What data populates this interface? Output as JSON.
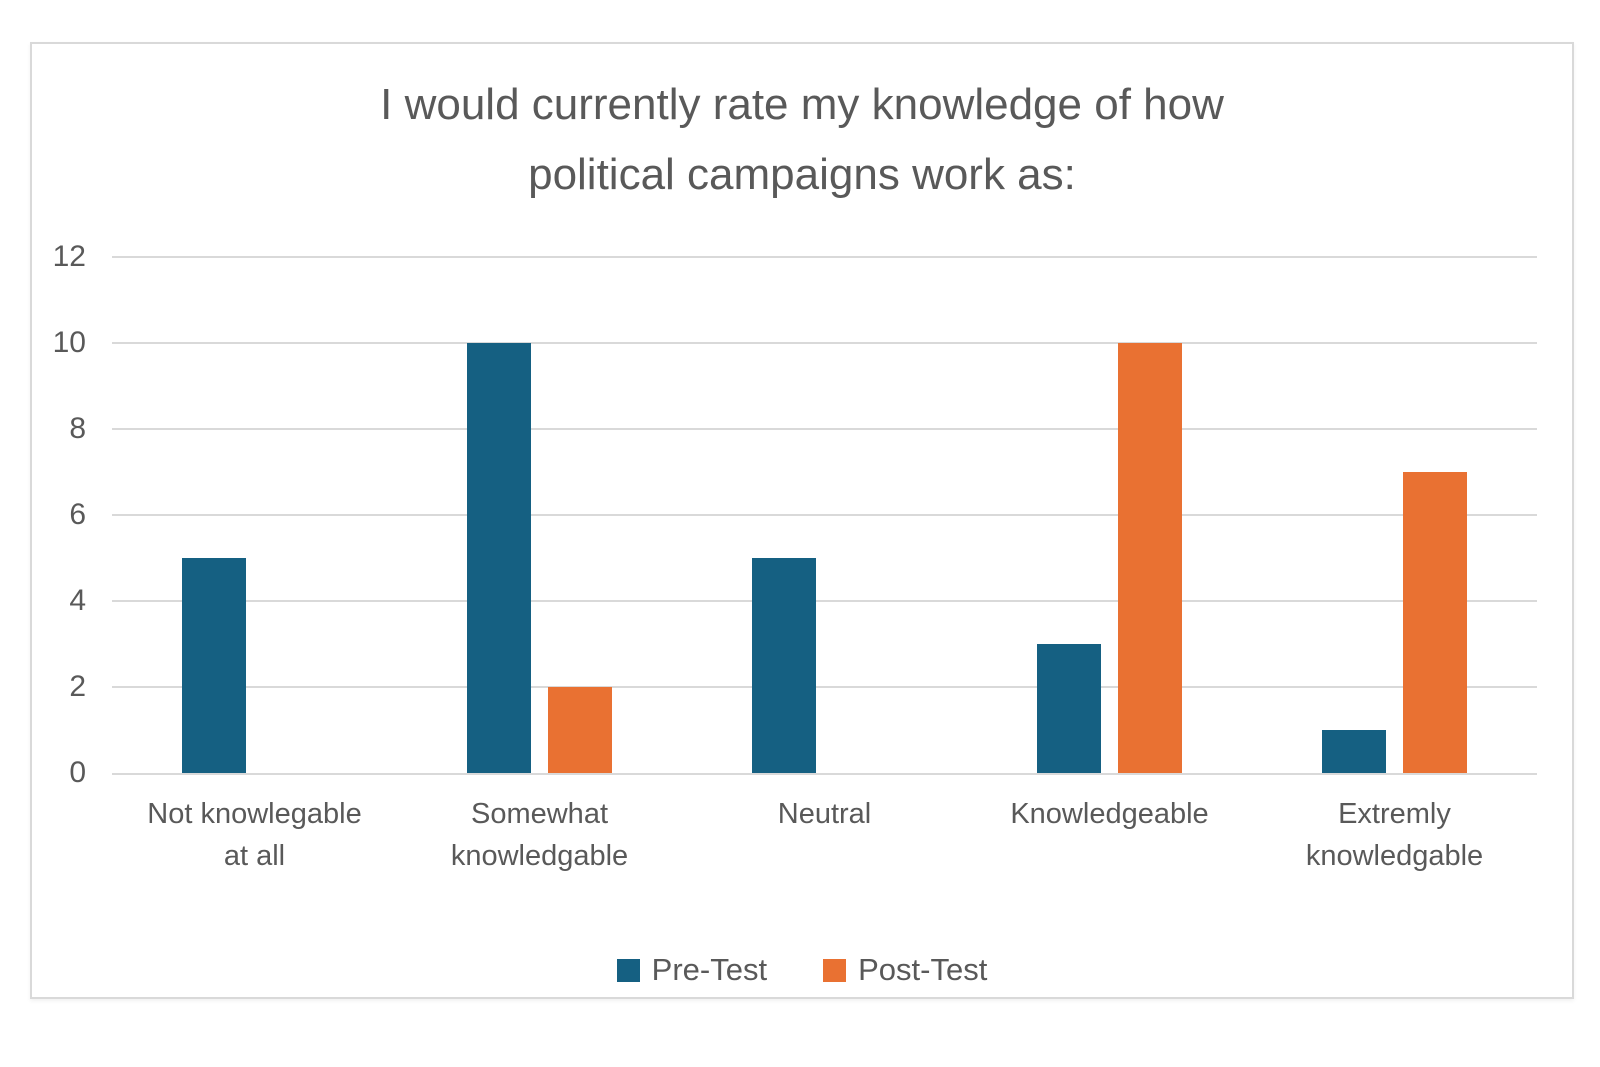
{
  "chart_data": {
    "type": "bar",
    "title": "I would currently rate my knowledge of how political campaigns work as:",
    "title_display": "I would currently rate my knowledge of how\npolitical campaigns work as:",
    "categories": [
      "Not knowlegable\nat all",
      "Somewhat\nknowledgable",
      "Neutral",
      "Knowledgeable",
      "Extremly\nknowledgable"
    ],
    "series": [
      {
        "name": "Pre-Test",
        "color": "#156082",
        "values": [
          5,
          10,
          5,
          3,
          1
        ]
      },
      {
        "name": "Post-Test",
        "color": "#E97132",
        "values": [
          0,
          2,
          0,
          10,
          7
        ]
      }
    ],
    "xlabel": "",
    "ylabel": "",
    "ylim": [
      0,
      12
    ],
    "ytick_step": 2,
    "yticks": [
      0,
      2,
      4,
      6,
      8,
      10,
      12
    ],
    "grid": true,
    "legend_position": "bottom"
  },
  "style": {
    "background": "#FFFFFF",
    "frame_border": "#D9D9D9",
    "gridline_color": "#D9D9D9",
    "axis_line_color": "#D9D9D9",
    "text_color": "#595959"
  }
}
